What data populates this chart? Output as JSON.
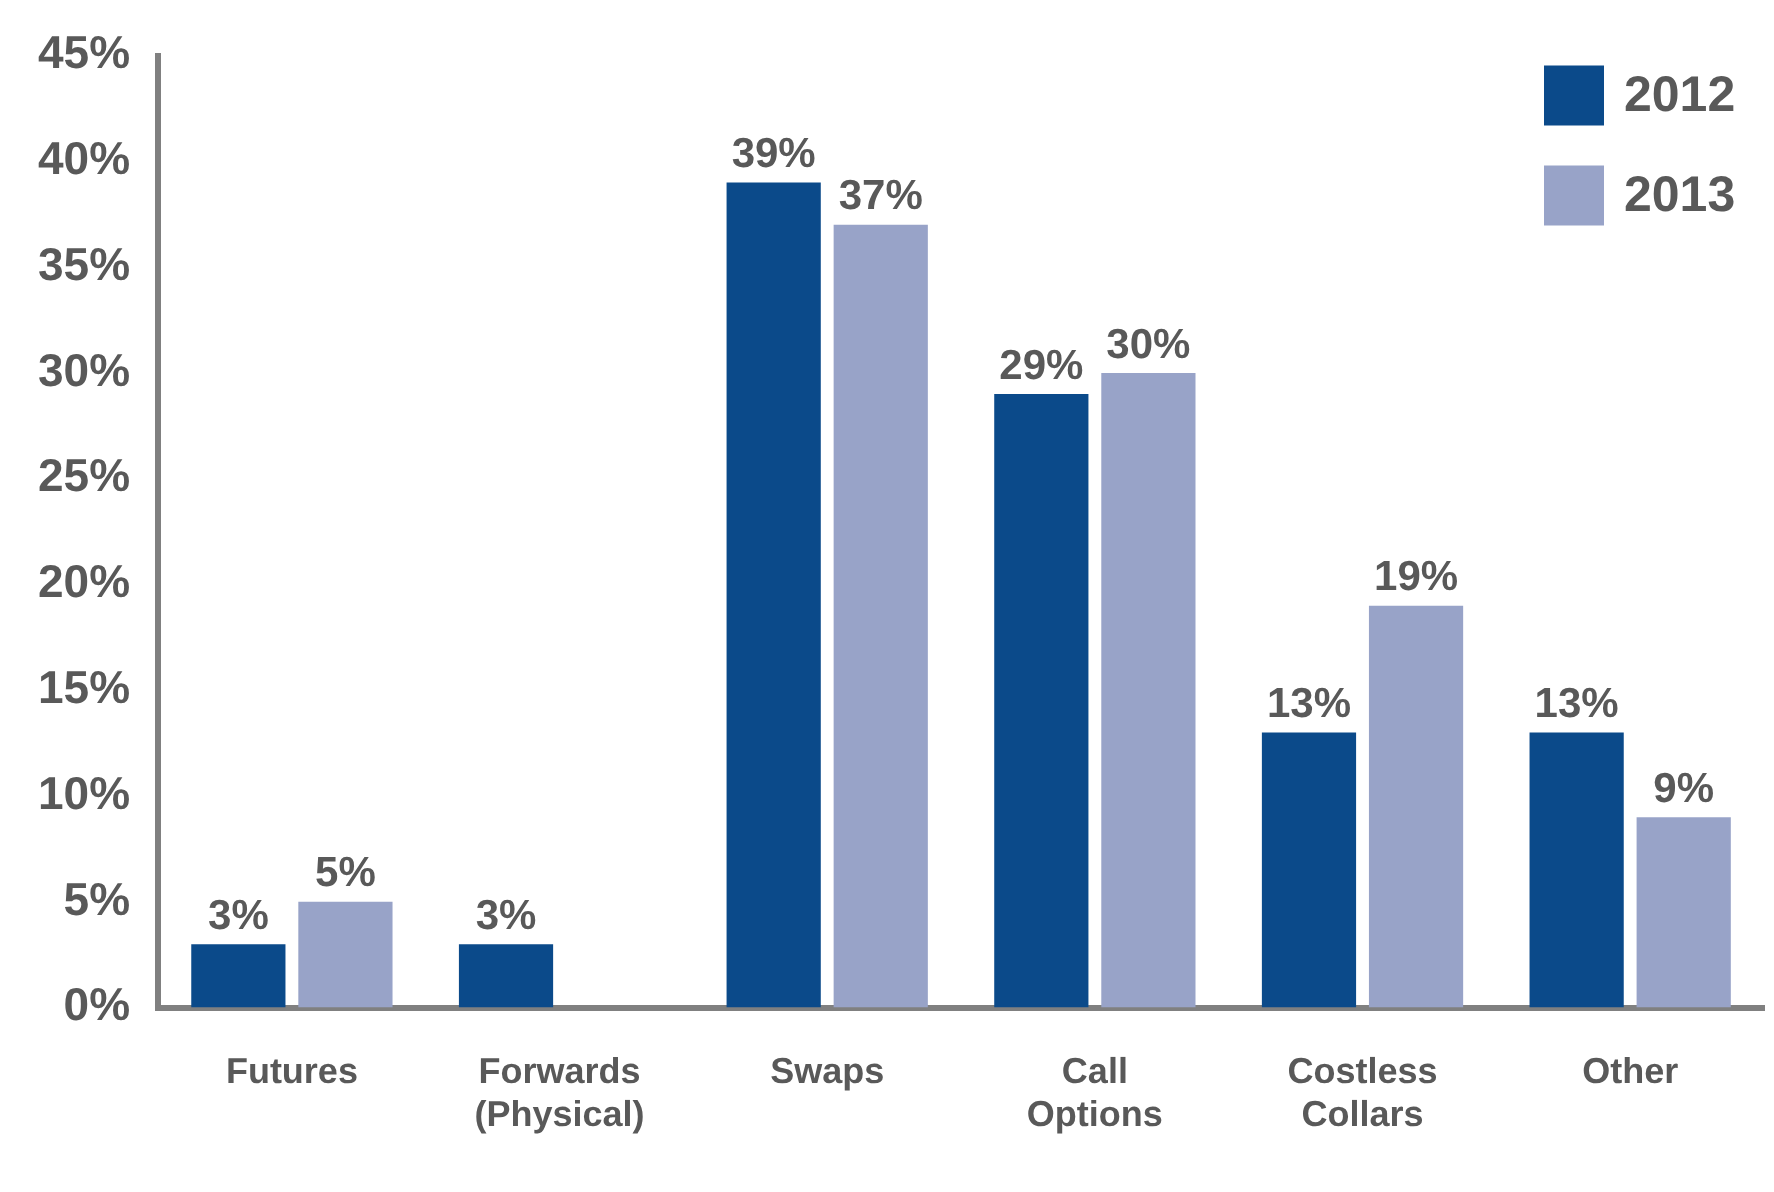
{
  "chart_data": {
    "type": "bar",
    "categories": [
      "Futures",
      "Forwards (Physical)",
      "Swaps",
      "Call Options",
      "Costless Collars",
      "Other"
    ],
    "series": [
      {
        "name": "2012",
        "color": "#0b4a8a",
        "values": [
          3,
          3,
          39,
          29,
          13,
          13
        ],
        "value_labels": [
          "3%",
          "3%",
          "39%",
          "29%",
          "13%",
          "13%"
        ]
      },
      {
        "name": "2013",
        "color": "#98a3c8",
        "values": [
          5,
          null,
          37,
          30,
          19,
          9
        ],
        "value_labels": [
          "5%",
          null,
          "37%",
          "30%",
          "19%",
          "9%"
        ]
      }
    ],
    "ylim": [
      0,
      45
    ],
    "yticks": [
      {
        "value": 0,
        "label": "0%"
      },
      {
        "value": 5,
        "label": "5%"
      },
      {
        "value": 10,
        "label": "10%"
      },
      {
        "value": 15,
        "label": "15%"
      },
      {
        "value": 20,
        "label": "20%"
      },
      {
        "value": 25,
        "label": "25%"
      },
      {
        "value": 30,
        "label": "30%"
      },
      {
        "value": 35,
        "label": "35%"
      },
      {
        "value": 40,
        "label": "40%"
      },
      {
        "value": 45,
        "label": "45%"
      }
    ],
    "grid": false,
    "legend": "top right"
  }
}
